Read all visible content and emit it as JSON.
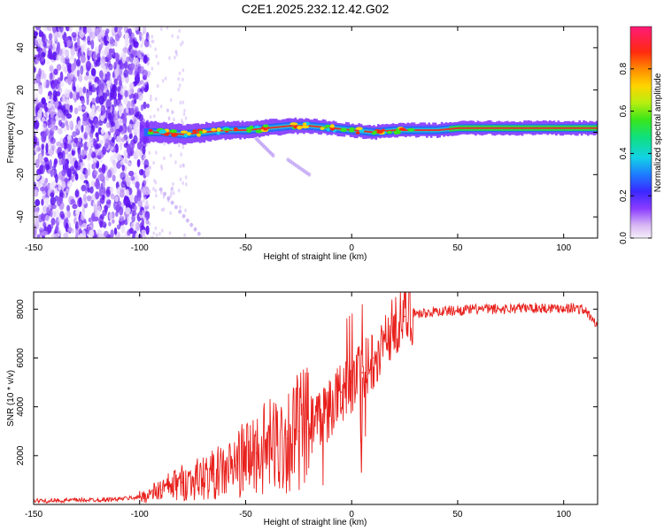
{
  "title": "C2E1.2025.232.12.42.G02",
  "colors": {
    "background": "#ffffff",
    "axis": "#000000",
    "snr_line": "#e8201c",
    "spec_low": "#7a2cff",
    "ridge_core": "#e8302a",
    "ridge_mid": "#2ad84a",
    "ridge_edge": "#22bcd8"
  },
  "chart_data": [
    {
      "type": "heatmap",
      "title": "C2E1.2025.232.12.42.G02",
      "xlabel": "Height of straight line (km)",
      "ylabel": "Frequency (Hz)",
      "xlim": [
        -150,
        116
      ],
      "ylim": [
        -50,
        50
      ],
      "xticks": [
        -150,
        -100,
        -50,
        0,
        50,
        100
      ],
      "yticks": [
        -40,
        -20,
        0,
        20,
        40
      ],
      "colorbar": {
        "label": "Normalized spectral amplitude",
        "range": [
          0,
          1
        ],
        "ticks": [
          "0.0",
          "0.2",
          "0.4",
          "0.6",
          "0.8"
        ]
      },
      "ridge": {
        "x": [
          -100,
          -90,
          -80,
          -70,
          -60,
          -50,
          -40,
          -30,
          -20,
          -10,
          0,
          10,
          20,
          30,
          40,
          50,
          60,
          70,
          80,
          90,
          100,
          116
        ],
        "freq": [
          0,
          0,
          -1,
          0,
          1,
          1,
          2,
          3,
          3,
          2,
          1,
          0,
          1,
          1,
          1,
          2,
          2,
          2,
          2,
          2,
          2,
          2
        ]
      },
      "noise_region_x": [
        -150,
        -100
      ],
      "faint_features": [
        {
          "x": [
            -45,
            -37
          ],
          "freq": [
            -3,
            -11
          ]
        },
        {
          "x": [
            -30,
            -20
          ],
          "freq": [
            -13,
            -20
          ]
        },
        {
          "x": [
            -90,
            -72
          ],
          "freq": [
            -27,
            -48
          ]
        }
      ]
    },
    {
      "type": "line",
      "xlabel": "Height of straight line (km)",
      "ylabel": "SNR (10 * v/v)",
      "xlim": [
        -150,
        116
      ],
      "ylim": [
        0,
        8700
      ],
      "xticks": [
        -150,
        -100,
        -50,
        0,
        50,
        100
      ],
      "yticks": [
        2000,
        4000,
        6000,
        8000
      ],
      "series": [
        {
          "name": "SNR",
          "x": [
            -150,
            -140,
            -130,
            -120,
            -110,
            -100,
            -95,
            -90,
            -85,
            -80,
            -75,
            -70,
            -65,
            -60,
            -55,
            -50,
            -45,
            -40,
            -35,
            -30,
            -25,
            -20,
            -15,
            -10,
            -5,
            0,
            5,
            10,
            15,
            20,
            25,
            30,
            35,
            40,
            50,
            60,
            70,
            80,
            90,
            100,
            105,
            110,
            116
          ],
          "y": [
            150,
            150,
            180,
            190,
            220,
            300,
            420,
            600,
            750,
            900,
            1000,
            1100,
            1250,
            1350,
            1600,
            1900,
            2100,
            2300,
            2500,
            2700,
            3000,
            3100,
            3400,
            4000,
            4600,
            5000,
            5400,
            6000,
            6700,
            7300,
            7700,
            7800,
            7850,
            7900,
            7950,
            8000,
            8000,
            8050,
            8050,
            8050,
            8050,
            7950,
            7300
          ]
        }
      ]
    }
  ]
}
